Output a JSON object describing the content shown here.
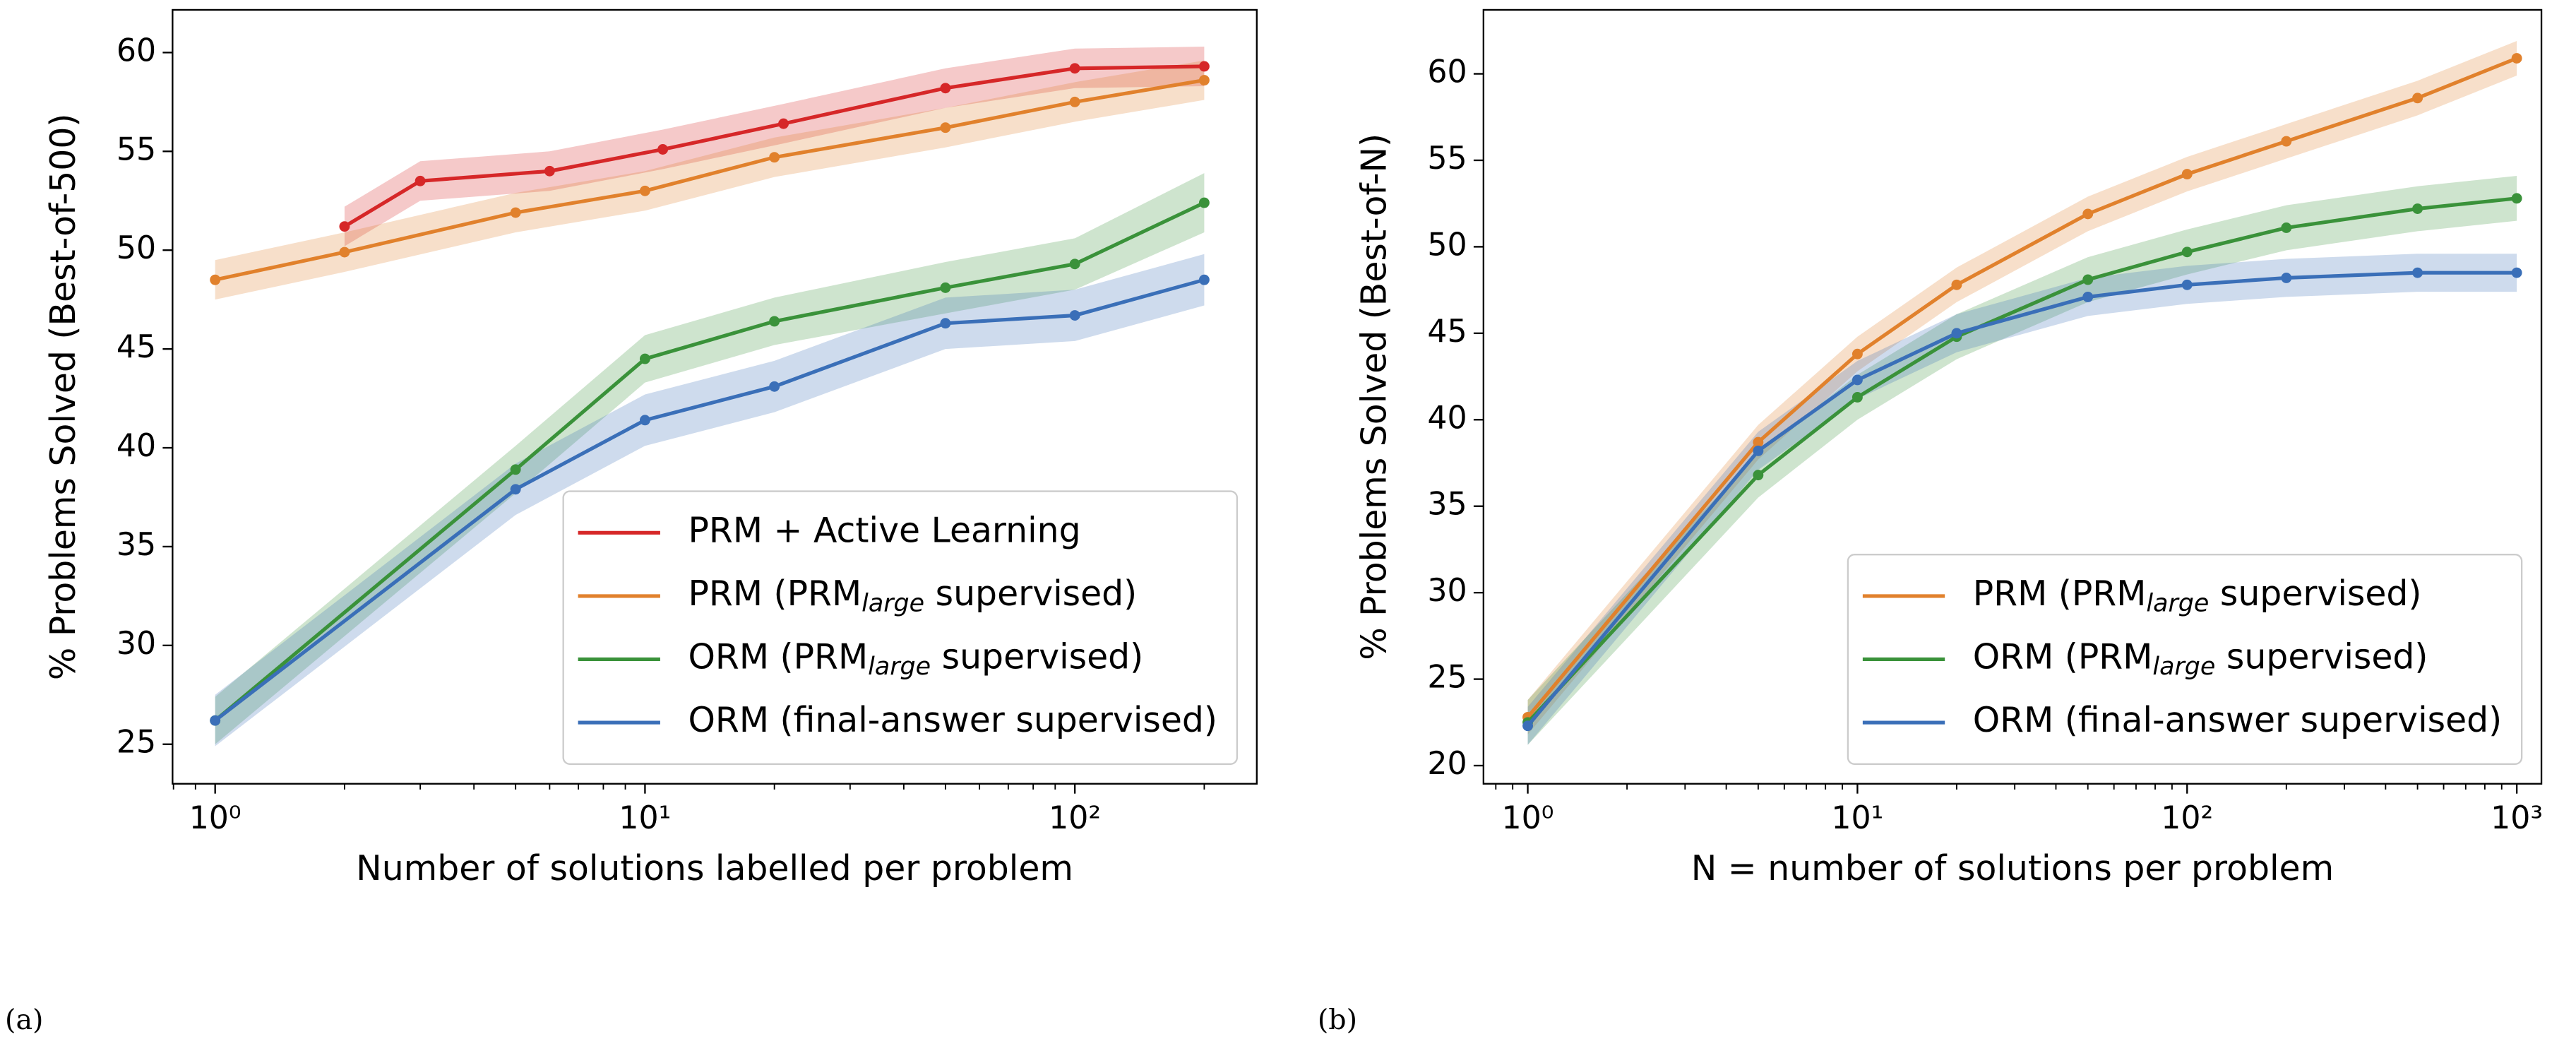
{
  "chart_data": [
    {
      "type": "line",
      "panel_label": "(a)",
      "xlabel": "Number of solutions labelled per problem",
      "ylabel": "% Problems Solved (Best-of-500)",
      "xlog": true,
      "xlim": [
        0.796,
        265
      ],
      "ylim": [
        23.0,
        62.16
      ],
      "xticks": [
        {
          "value": 1,
          "label": "10⁰"
        },
        {
          "value": 10,
          "label": "10¹"
        },
        {
          "value": 100,
          "label": "10²"
        }
      ],
      "yticks": [
        25,
        30,
        35,
        40,
        45,
        50,
        55,
        60
      ],
      "legend": "lower right",
      "series": [
        {
          "name": "PRM + Active Learning",
          "color": "#d62728",
          "x": [
            2,
            3,
            6,
            11,
            21,
            50,
            100,
            200
          ],
          "values": [
            51.2,
            53.5,
            54.0,
            55.1,
            56.4,
            58.2,
            59.2,
            59.3
          ],
          "errors": [
            1.0,
            1.0,
            1.0,
            1.0,
            1.0,
            1.0,
            1.0,
            1.0
          ]
        },
        {
          "name": "PRM (PRMlarge supervised)",
          "name_subscript": "large",
          "color": "#e1812c",
          "x": [
            1,
            2,
            5,
            10,
            20,
            50,
            100,
            200
          ],
          "values": [
            48.5,
            49.9,
            51.9,
            53.0,
            54.7,
            56.2,
            57.5,
            58.6
          ],
          "errors": [
            1.0,
            1.0,
            1.0,
            1.0,
            1.0,
            1.0,
            1.0,
            1.0
          ]
        },
        {
          "name": "ORM (PRMlarge supervised)",
          "name_subscript": "large",
          "color": "#3a923a",
          "x": [
            1,
            5,
            10,
            20,
            50,
            100,
            200
          ],
          "values": [
            26.2,
            38.9,
            44.5,
            46.4,
            48.1,
            49.3,
            52.4
          ],
          "errors": [
            1.2,
            1.2,
            1.2,
            1.2,
            1.3,
            1.3,
            1.5
          ]
        },
        {
          "name": "ORM (final-answer supervised)",
          "color": "#3a6fb8",
          "x": [
            1,
            5,
            10,
            20,
            50,
            100,
            200
          ],
          "values": [
            26.2,
            37.9,
            41.4,
            43.1,
            46.3,
            46.7,
            48.5
          ],
          "errors": [
            1.3,
            1.3,
            1.3,
            1.3,
            1.3,
            1.3,
            1.3
          ]
        }
      ]
    },
    {
      "type": "line",
      "panel_label": "(b)",
      "xlabel": "N = number of solutions per problem",
      "ylabel": "% Problems Solved (Best-of-N)",
      "xlog": true,
      "xlim": [
        0.734,
        1188
      ],
      "ylim": [
        18.95,
        63.7
      ],
      "xticks": [
        {
          "value": 1,
          "label": "10⁰"
        },
        {
          "value": 10,
          "label": "10¹"
        },
        {
          "value": 100,
          "label": "10²"
        },
        {
          "value": 1000,
          "label": "10³"
        }
      ],
      "yticks": [
        20,
        25,
        30,
        35,
        40,
        45,
        50,
        55,
        60
      ],
      "legend": "lower right",
      "series": [
        {
          "name": "PRM (PRMlarge supervised)",
          "name_subscript": "large",
          "color": "#e1812c",
          "x": [
            1,
            5,
            10,
            20,
            50,
            100,
            200,
            500,
            1000
          ],
          "values": [
            22.8,
            38.7,
            43.8,
            47.8,
            51.9,
            54.2,
            56.1,
            58.6,
            60.9
          ],
          "errors": [
            1.0,
            1.0,
            1.0,
            1.0,
            1.0,
            1.0,
            1.0,
            1.0,
            1.0
          ]
        },
        {
          "name": "ORM (PRMlarge supervised)",
          "name_subscript": "large",
          "color": "#3a923a",
          "x": [
            1,
            5,
            10,
            20,
            50,
            100,
            200,
            500,
            1000
          ],
          "values": [
            22.5,
            36.8,
            41.3,
            44.8,
            48.1,
            49.7,
            51.1,
            52.2,
            52.8
          ],
          "errors": [
            1.3,
            1.3,
            1.3,
            1.3,
            1.3,
            1.3,
            1.3,
            1.3,
            1.3
          ]
        },
        {
          "name": "ORM (final-answer supervised)",
          "color": "#3a6fb8",
          "x": [
            1,
            5,
            10,
            20,
            50,
            100,
            200,
            500,
            1000
          ],
          "values": [
            22.3,
            38.2,
            42.3,
            45.0,
            47.1,
            47.8,
            48.2,
            48.5,
            48.5
          ],
          "errors": [
            1.1,
            1.1,
            1.1,
            1.1,
            1.1,
            1.1,
            1.1,
            1.1,
            1.1
          ]
        }
      ]
    }
  ]
}
